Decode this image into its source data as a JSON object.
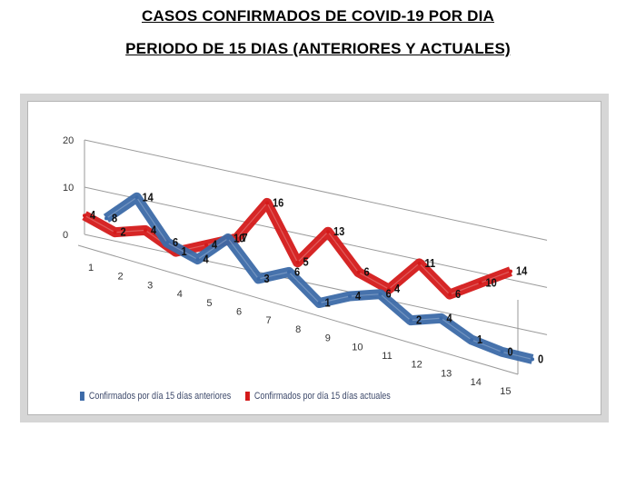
{
  "title": "CASOS CONFIRMADOS DE COVID-19 POR DIA",
  "subtitle": "PERIODO DE 15 DIAS (ANTERIORES Y ACTUALES)",
  "colors": {
    "series_prev": "#3c6aa8",
    "series_curr": "#d41a1a",
    "frame": "#d6d6d6",
    "grid": "#9a9a9a"
  },
  "chart_data": {
    "type": "line",
    "title": "",
    "x": [
      1,
      2,
      3,
      4,
      5,
      6,
      7,
      8,
      9,
      10,
      11,
      12,
      13,
      14,
      15
    ],
    "x_tick_labels": [
      "1",
      "2",
      "3",
      "4",
      "5",
      "6",
      "7",
      "8",
      "9",
      "10",
      "11",
      "12",
      "13",
      "14",
      "15"
    ],
    "y_tick_labels": [
      "0",
      "10",
      "20"
    ],
    "ylim": [
      0,
      20
    ],
    "grid": true,
    "legend_position": "bottom-left",
    "series": [
      {
        "name": "Confirmados por día 15 días anteriores",
        "values": [
          8,
          14,
          6,
          4,
          10,
          3,
          6,
          1,
          4,
          6,
          2,
          4,
          1,
          0,
          0
        ],
        "labels": [
          "8",
          "14",
          "6",
          "4",
          "10",
          "3",
          "6",
          "1",
          "4",
          "6",
          "2",
          "4",
          "1",
          "0",
          "0"
        ]
      },
      {
        "name": "Confirmados por día 15 días actuales",
        "values": [
          4,
          2,
          4,
          1,
          4,
          7,
          16,
          5,
          13,
          6,
          4,
          11,
          6,
          10,
          14
        ],
        "labels": [
          "4",
          "2",
          "4",
          "1",
          "4",
          "7",
          "16",
          "5",
          "13",
          "6",
          "4",
          "11",
          "6",
          "10",
          "14"
        ]
      }
    ]
  }
}
